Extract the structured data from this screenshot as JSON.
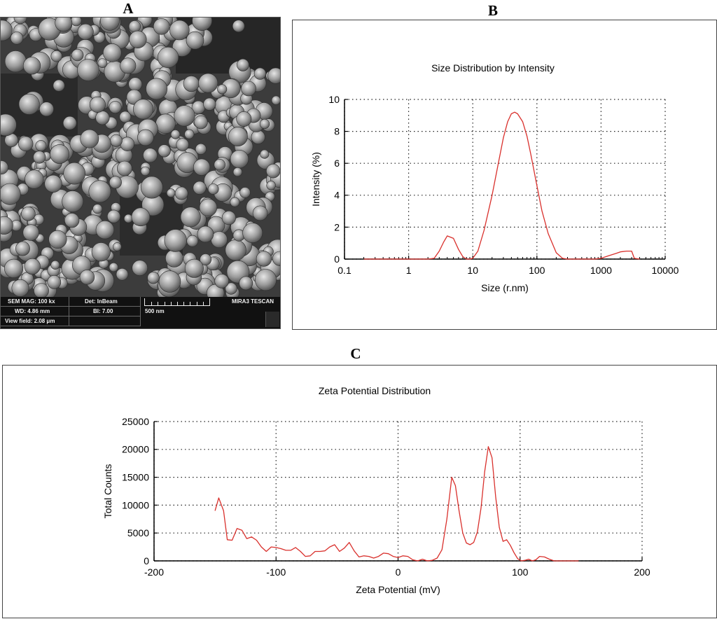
{
  "panels": {
    "a_label": "A",
    "b_label": "B",
    "c_label": "C"
  },
  "sem": {
    "mag": "SEM MAG: 100 kx",
    "det": "Det: InBeam",
    "wd": "WD: 4.86 mm",
    "bi": "BI: 7.00",
    "view_field": "View field: 2.08 μm",
    "scale": "500 nm",
    "brand": "MIRA3 TESCAN"
  },
  "chart_data": [
    {
      "type": "line",
      "title": "Size Distribution by Intensity",
      "xlabel": "Size (r.nm)",
      "ylabel": "Intensity (%)",
      "x_scale": "log",
      "xlim": [
        0.1,
        10000
      ],
      "ylim": [
        0,
        10
      ],
      "x_ticks": [
        0.1,
        1,
        10,
        100,
        1000,
        10000
      ],
      "x_tick_labels": [
        "0.1",
        "1",
        "10",
        "100",
        "1000",
        "10000"
      ],
      "y_ticks": [
        0,
        2,
        4,
        6,
        8,
        10
      ],
      "y_tick_labels": [
        "0",
        "2",
        "4",
        "6",
        "8",
        "10"
      ],
      "grid": true,
      "line_color": "#d9302c",
      "series": [
        {
          "x": [
            0.2,
            0.5,
            1,
            2,
            2.5,
            3,
            3.5,
            4,
            5,
            6,
            7,
            8,
            9,
            10,
            12,
            15,
            20,
            25,
            30,
            35,
            40,
            45,
            50,
            60,
            70,
            80,
            100,
            120,
            150,
            200,
            250,
            300,
            400,
            600,
            800,
            1000,
            1300,
            1700,
            2000,
            2500,
            3000,
            3300,
            4000
          ],
          "y": [
            0,
            0,
            0,
            0,
            0.05,
            0.5,
            1.05,
            1.45,
            1.3,
            0.6,
            0.15,
            0,
            0,
            0.05,
            0.5,
            1.8,
            4.0,
            6.0,
            7.6,
            8.6,
            9.1,
            9.2,
            9.1,
            8.6,
            7.7,
            6.6,
            4.6,
            3.0,
            1.6,
            0.4,
            0.05,
            0,
            0,
            0,
            0,
            0.05,
            0.2,
            0.35,
            0.45,
            0.5,
            0.5,
            0.05,
            0
          ]
        }
      ]
    },
    {
      "type": "line",
      "title": "Zeta Potential Distribution",
      "xlabel": "Zeta Potential (mV)",
      "ylabel": "Total Counts",
      "xlim": [
        -200,
        200
      ],
      "ylim": [
        0,
        25000
      ],
      "x_ticks": [
        -200,
        -100,
        0,
        100,
        200
      ],
      "x_tick_labels": [
        "-200",
        "-100",
        "0",
        "100",
        "200"
      ],
      "y_ticks": [
        0,
        5000,
        10000,
        15000,
        20000,
        25000
      ],
      "y_tick_labels": [
        "0",
        "5000",
        "10000",
        "15000",
        "20000",
        "25000"
      ],
      "grid": true,
      "line_color": "#d9302c",
      "series": [
        {
          "x": [
            -150,
            -147,
            -143,
            -140,
            -136,
            -132,
            -128,
            -124,
            -120,
            -116,
            -112,
            -108,
            -104,
            -100,
            -96,
            -92,
            -88,
            -84,
            -80,
            -76,
            -72,
            -68,
            -64,
            -60,
            -56,
            -52,
            -48,
            -44,
            -40,
            -36,
            -32,
            -28,
            -24,
            -20,
            -16,
            -12,
            -8,
            -4,
            0,
            4,
            8,
            12,
            16,
            20,
            24,
            28,
            32,
            36,
            40,
            44,
            47,
            50,
            53,
            56,
            59,
            62,
            65,
            68,
            71,
            74,
            77,
            80,
            83,
            86,
            89,
            92,
            95,
            98,
            101,
            104,
            107,
            110,
            113,
            116,
            120,
            124,
            128,
            132,
            136,
            140,
            144,
            148
          ],
          "y": [
            9000,
            11300,
            9000,
            3800,
            3700,
            5800,
            5500,
            4000,
            4300,
            3700,
            2500,
            1700,
            2500,
            2400,
            2200,
            1900,
            1900,
            2400,
            1700,
            800,
            900,
            1700,
            1700,
            1800,
            2500,
            2900,
            1700,
            2300,
            3300,
            1800,
            700,
            900,
            800,
            500,
            800,
            1400,
            1300,
            800,
            600,
            900,
            800,
            200,
            0,
            300,
            0,
            100,
            500,
            2000,
            7500,
            15000,
            13500,
            9000,
            5000,
            3200,
            2900,
            3300,
            5200,
            9500,
            16000,
            20500,
            18500,
            11500,
            6000,
            3500,
            3800,
            2800,
            1500,
            400,
            0,
            100,
            300,
            0,
            200,
            800,
            700,
            300,
            0,
            0,
            0,
            0,
            0,
            0
          ]
        }
      ]
    }
  ]
}
